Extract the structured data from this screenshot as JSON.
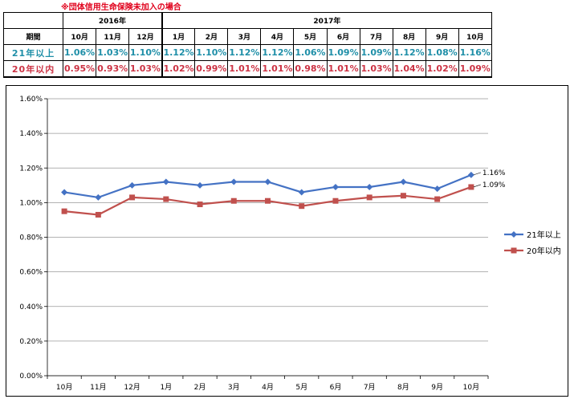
{
  "note": "※団体信用生命保険未加入の場合",
  "table": {
    "year_headers": [
      {
        "label": "2016年",
        "span": 3
      },
      {
        "label": "2017年",
        "span": 10
      }
    ],
    "period_label": "期間",
    "months": [
      "10月",
      "11月",
      "12月",
      "1月",
      "2月",
      "3月",
      "4月",
      "5月",
      "6月",
      "7月",
      "8月",
      "9月",
      "10月"
    ],
    "rows": [
      {
        "label": "21年以上",
        "values": [
          "1.06%",
          "1.03%",
          "1.10%",
          "1.12%",
          "1.10%",
          "1.12%",
          "1.12%",
          "1.06%",
          "1.09%",
          "1.09%",
          "1.12%",
          "1.08%",
          "1.16%"
        ]
      },
      {
        "label": "20年以内",
        "values": [
          "0.95%",
          "0.93%",
          "1.03%",
          "1.02%",
          "0.99%",
          "1.01%",
          "1.01%",
          "0.98%",
          "1.01%",
          "1.03%",
          "1.04%",
          "1.02%",
          "1.09%"
        ]
      }
    ]
  },
  "colors": {
    "series_21": "#4472c4",
    "series_20": "#c0504d",
    "table_21": "#1f8fa8",
    "table_20": "#cc3344"
  },
  "chart_data": {
    "type": "line",
    "categories": [
      "10月",
      "11月",
      "12月",
      "1月",
      "2月",
      "3月",
      "4月",
      "5月",
      "6月",
      "7月",
      "8月",
      "9月",
      "10月"
    ],
    "series": [
      {
        "name": "21年以上",
        "marker": "diamond",
        "values": [
          1.06,
          1.03,
          1.1,
          1.12,
          1.1,
          1.12,
          1.12,
          1.06,
          1.09,
          1.09,
          1.12,
          1.08,
          1.16
        ]
      },
      {
        "name": "20年以内",
        "marker": "square",
        "values": [
          0.95,
          0.93,
          1.03,
          1.02,
          0.99,
          1.01,
          1.01,
          0.98,
          1.01,
          1.03,
          1.04,
          1.02,
          1.09
        ]
      }
    ],
    "ylim": [
      0,
      1.6
    ],
    "yticks": [
      "0.00%",
      "0.20%",
      "0.40%",
      "0.60%",
      "0.80%",
      "1.00%",
      "1.20%",
      "1.40%",
      "1.60%"
    ],
    "end_labels": [
      "1.16%",
      "1.09%"
    ],
    "grid": "horizontal",
    "legend": "right"
  }
}
